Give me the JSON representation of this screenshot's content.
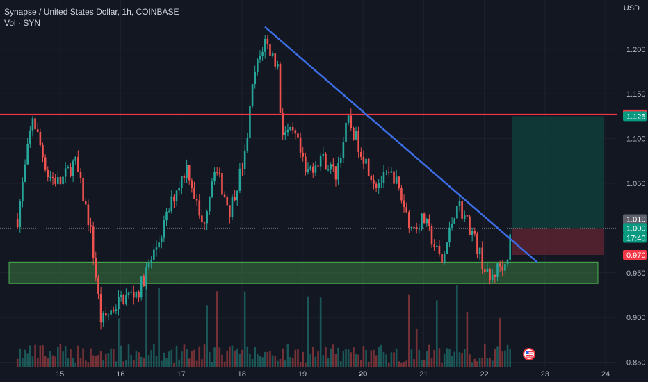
{
  "header": {
    "title": "Synapse / United States Dollar, 1h, COINBASE",
    "volume_label": "Vol · SYN",
    "currency": "USD"
  },
  "colors": {
    "background": "#131722",
    "up": "#26a69a",
    "down": "#ef5350",
    "trendline": "#3c6ee6",
    "resistance": "#f23645",
    "support_zone": "#4caf50",
    "grid": "#1e222d",
    "axis_text": "#b2b5be"
  },
  "chart_data": {
    "type": "candlestick",
    "symbol": "Synapse / United States Dollar",
    "exchange": "COINBASE",
    "interval": "1h",
    "ylim": [
      0.845,
      1.255
    ],
    "x_ticks": [
      {
        "label": "15",
        "day": 15
      },
      {
        "label": "16",
        "day": 16
      },
      {
        "label": "17",
        "day": 17
      },
      {
        "label": "18",
        "day": 18
      },
      {
        "label": "19",
        "day": 19
      },
      {
        "label": "20",
        "day": 20
      },
      {
        "label": "21",
        "day": 21
      },
      {
        "label": "22",
        "day": 22
      },
      {
        "label": "23",
        "day": 23
      },
      {
        "label": "24",
        "day": 24
      }
    ],
    "y_ticks": [
      {
        "value": 0.85,
        "label": "0.850"
      },
      {
        "value": 0.9,
        "label": "0.900"
      },
      {
        "value": 0.95,
        "label": "0.950"
      },
      {
        "value": 1.05,
        "label": "1.050"
      },
      {
        "value": 1.1,
        "label": "1.100"
      },
      {
        "value": 1.15,
        "label": "1.150"
      },
      {
        "value": 1.2,
        "label": "1.200"
      }
    ],
    "price_tags": [
      {
        "label": "1.127",
        "value": 1.127,
        "bg": "#f23645",
        "fg": "#ffffff"
      },
      {
        "label": "1.125",
        "value": 1.125,
        "bg": "#089981",
        "fg": "#ffffff"
      },
      {
        "label": "1.010",
        "value": 1.01,
        "bg": "#5d606b",
        "fg": "#ffffff"
      },
      {
        "label": "1.000",
        "value": 1.0,
        "bg": "#089981",
        "fg": "#ffffff"
      },
      {
        "label": "17:40",
        "value": 0.989,
        "bg": "#089981",
        "fg": "#ffffff"
      },
      {
        "label": "0.970",
        "value": 0.97,
        "bg": "#f23645",
        "fg": "#ffffff"
      }
    ],
    "key_points": [
      {
        "day": 14.3,
        "price": 1.01
      },
      {
        "day": 14.55,
        "price": 1.125
      },
      {
        "day": 14.8,
        "price": 1.06
      },
      {
        "day": 15.0,
        "price": 1.05
      },
      {
        "day": 15.25,
        "price": 1.075
      },
      {
        "day": 15.5,
        "price": 1.0
      },
      {
        "day": 15.68,
        "price": 0.895
      },
      {
        "day": 16.0,
        "price": 0.92
      },
      {
        "day": 16.3,
        "price": 0.93
      },
      {
        "day": 16.6,
        "price": 0.98
      },
      {
        "day": 16.9,
        "price": 1.04
      },
      {
        "day": 17.1,
        "price": 1.07
      },
      {
        "day": 17.35,
        "price": 1.0
      },
      {
        "day": 17.55,
        "price": 1.07
      },
      {
        "day": 17.8,
        "price": 1.02
      },
      {
        "day": 18.05,
        "price": 1.08
      },
      {
        "day": 18.2,
        "price": 1.17
      },
      {
        "day": 18.38,
        "price": 1.21
      },
      {
        "day": 18.6,
        "price": 1.18
      },
      {
        "day": 18.65,
        "price": 1.11
      },
      {
        "day": 18.9,
        "price": 1.1
      },
      {
        "day": 19.05,
        "price": 1.06
      },
      {
        "day": 19.3,
        "price": 1.08
      },
      {
        "day": 19.55,
        "price": 1.06
      },
      {
        "day": 19.75,
        "price": 1.12
      },
      {
        "day": 19.95,
        "price": 1.09
      },
      {
        "day": 20.2,
        "price": 1.05
      },
      {
        "day": 20.5,
        "price": 1.06
      },
      {
        "day": 20.8,
        "price": 1.0
      },
      {
        "day": 21.0,
        "price": 1.01
      },
      {
        "day": 21.3,
        "price": 0.96
      },
      {
        "day": 21.55,
        "price": 1.03
      },
      {
        "day": 21.8,
        "price": 0.995
      },
      {
        "day": 22.08,
        "price": 0.94
      },
      {
        "day": 22.25,
        "price": 0.958
      },
      {
        "day": 22.35,
        "price": 0.96
      },
      {
        "day": 22.46,
        "price": 1.0
      }
    ],
    "resistance_line": 1.127,
    "support_zone": [
      0.938,
      0.962
    ],
    "trendline": {
      "from": {
        "day": 18.38,
        "price": 1.225
      },
      "to": {
        "day": 22.87,
        "price": 0.962
      }
    },
    "position": {
      "entry": 1.0,
      "target": 1.125,
      "stop": 0.97,
      "day_start": 22.46,
      "day_end": 24.0
    },
    "last_price": 1.0,
    "volume_max": 100
  },
  "footer": {
    "flag_label": "US"
  }
}
